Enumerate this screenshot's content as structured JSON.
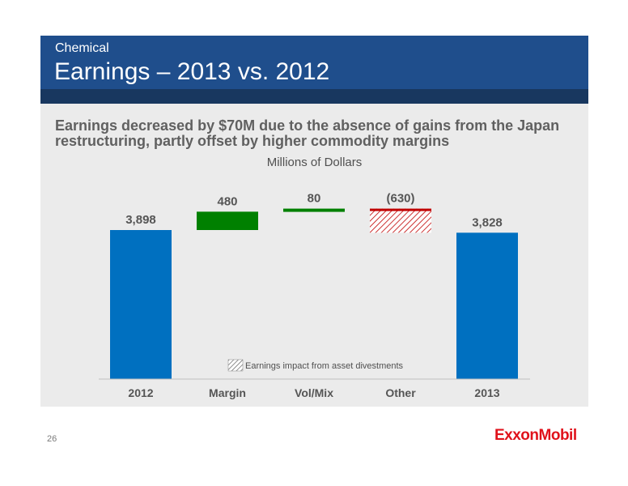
{
  "header": {
    "subtitle": "Chemical",
    "title": "Earnings – 2013 vs. 2012"
  },
  "headline": "Earnings decreased by $70M due to the absence of gains from the Japan restructuring, partly offset by higher commodity margins",
  "footer": {
    "page_number": "26",
    "logo_text": "ExxonMobil"
  },
  "colors": {
    "header": "#1f4e8c",
    "header_band": "#18375f",
    "total_bar": "#0070c0",
    "increase": "#008000",
    "decrease": "#c00000"
  },
  "chart_data": {
    "type": "bar",
    "subtype": "waterfall",
    "ylabel": "Millions of Dollars",
    "categories": [
      "2012",
      "Margin",
      "Vol/Mix",
      "Other",
      "2013"
    ],
    "values": [
      3898,
      480,
      80,
      -630,
      3828
    ],
    "value_labels": [
      "3,898",
      "480",
      "80",
      "(630)",
      "3,828"
    ],
    "kinds": [
      "total",
      "increase",
      "increase",
      "decrease",
      "total"
    ],
    "hatched_legend": "Earnings impact from asset divestments",
    "hatched_segments": [
      {
        "category": "Other",
        "value": -630
      }
    ],
    "ylim": [
      0,
      4700
    ],
    "grid": false
  }
}
